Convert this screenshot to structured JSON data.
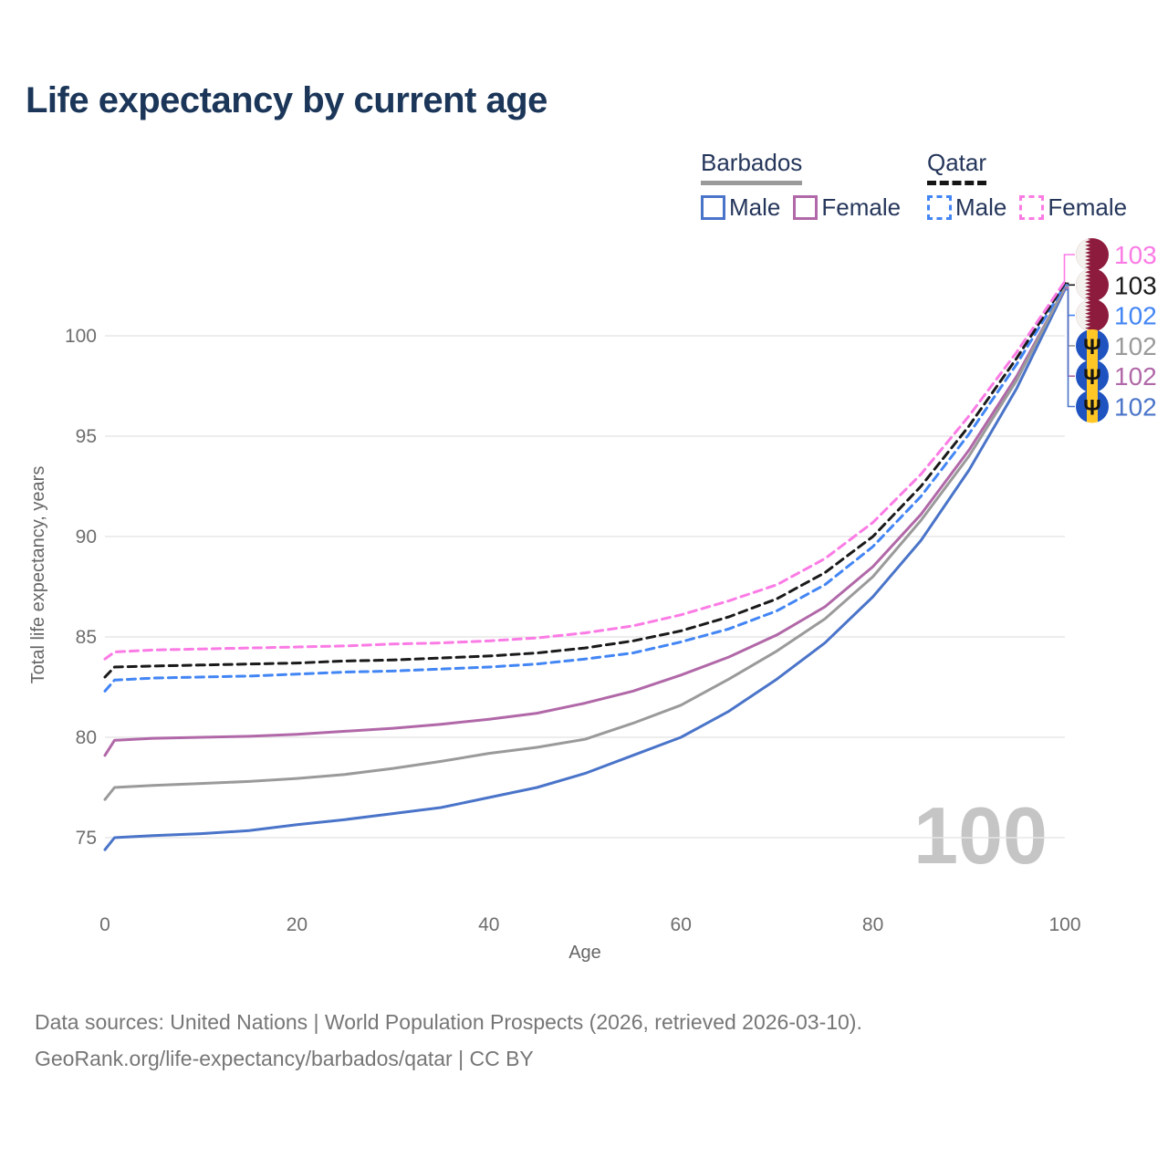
{
  "title": "Life expectancy by current age",
  "legend": {
    "groups": [
      {
        "label": "Barbados",
        "line_style": "solid",
        "line_color": "#9a9a9a",
        "items": [
          {
            "label": "Male",
            "color": "#4a74c9"
          },
          {
            "label": "Female",
            "color": "#b168a8"
          }
        ]
      },
      {
        "label": "Qatar",
        "line_style": "dashed",
        "line_color": "#151515",
        "items": [
          {
            "label": "Male",
            "color": "#4285f4"
          },
          {
            "label": "Female",
            "color": "#fb7be5"
          }
        ]
      }
    ]
  },
  "watermark_age": "100",
  "footer": {
    "line1": "Data sources: United Nations | World Population Prospects (2026, retrieved 2026-03-10).",
    "line2": "GeoRank.org/life-expectancy/barbados/qatar | CC BY"
  },
  "colors": {
    "title": "#1b3659",
    "grid": "#e7e7e7",
    "tick_label": "#6e6e6e",
    "axis_title": "#666666",
    "watermark": "#c5c5c5",
    "footer": "#767676",
    "qatar_flag_maroon": "#8d1b3d",
    "barbados_flag_blue": "#1f53c0",
    "barbados_flag_gold": "#ffc726",
    "barbados_trident": "#151515"
  },
  "chart_data": {
    "type": "line",
    "title": "Life expectancy by current age",
    "xlabel": "Age",
    "ylabel": "Total life expectancy, years",
    "xlim": [
      0,
      100
    ],
    "ylim": [
      74,
      103.5
    ],
    "xticks": [
      0,
      20,
      40,
      60,
      80,
      100
    ],
    "yticks": [
      75,
      80,
      85,
      90,
      95,
      100
    ],
    "grid": "horizontal",
    "legend_position": "top-right",
    "hovered_age": 100,
    "x": [
      0,
      1,
      5,
      10,
      15,
      20,
      25,
      30,
      35,
      40,
      45,
      50,
      55,
      60,
      65,
      70,
      75,
      80,
      85,
      90,
      95,
      100
    ],
    "series": [
      {
        "id": "qatar-female",
        "name": "Qatar Female",
        "country": "Qatar",
        "sex": "Female",
        "line": "dashed",
        "color": "#fb7be5",
        "end_label": "103",
        "values": [
          83.9,
          84.25,
          84.35,
          84.4,
          84.45,
          84.5,
          84.55,
          84.65,
          84.7,
          84.8,
          84.95,
          85.2,
          85.55,
          86.1,
          86.8,
          87.6,
          88.9,
          90.7,
          93.1,
          96.0,
          99.2,
          102.72
        ]
      },
      {
        "id": "qatar-total",
        "name": "Qatar Total",
        "country": "Qatar",
        "sex": "Total",
        "line": "dashed",
        "color": "#1a1a1a",
        "end_label": "103",
        "values": [
          83.0,
          83.5,
          83.55,
          83.6,
          83.65,
          83.7,
          83.8,
          83.85,
          83.95,
          84.05,
          84.2,
          84.45,
          84.8,
          85.3,
          86.0,
          86.9,
          88.2,
          90.0,
          92.5,
          95.5,
          98.9,
          102.62
        ]
      },
      {
        "id": "qatar-male",
        "name": "Qatar Male",
        "country": "Qatar",
        "sex": "Male",
        "line": "dashed",
        "color": "#4285f4",
        "end_label": "102",
        "values": [
          82.3,
          82.85,
          82.95,
          83.0,
          83.05,
          83.15,
          83.25,
          83.3,
          83.4,
          83.5,
          83.65,
          83.9,
          84.2,
          84.75,
          85.4,
          86.3,
          87.6,
          89.5,
          92.0,
          95.1,
          98.6,
          102.52
        ]
      },
      {
        "id": "barbados-total",
        "name": "Barbados Total",
        "country": "Barbados",
        "sex": "Total",
        "line": "solid",
        "color": "#9a9a9a",
        "end_label": "102",
        "values": [
          76.9,
          77.5,
          77.6,
          77.7,
          77.8,
          77.95,
          78.15,
          78.45,
          78.8,
          79.2,
          79.5,
          79.9,
          80.7,
          81.6,
          82.9,
          84.3,
          85.9,
          88.0,
          90.8,
          94.0,
          97.8,
          102.44
        ]
      },
      {
        "id": "barbados-female",
        "name": "Barbados Female",
        "country": "Barbados",
        "sex": "Female",
        "line": "solid",
        "color": "#b168a8",
        "end_label": "102",
        "values": [
          79.1,
          79.85,
          79.95,
          80.0,
          80.05,
          80.15,
          80.3,
          80.45,
          80.65,
          80.9,
          81.2,
          81.7,
          82.3,
          83.1,
          84.0,
          85.1,
          86.5,
          88.5,
          91.1,
          94.3,
          98.0,
          102.38
        ]
      },
      {
        "id": "barbados-male",
        "name": "Barbados Male",
        "country": "Barbados",
        "sex": "Male",
        "line": "solid",
        "color": "#4a74c9",
        "end_label": "102",
        "values": [
          74.4,
          75.0,
          75.1,
          75.2,
          75.35,
          75.65,
          75.9,
          76.2,
          76.5,
          77.0,
          77.5,
          78.2,
          79.1,
          80.0,
          81.3,
          82.9,
          84.7,
          87.0,
          89.8,
          93.3,
          97.4,
          102.3
        ]
      }
    ]
  }
}
